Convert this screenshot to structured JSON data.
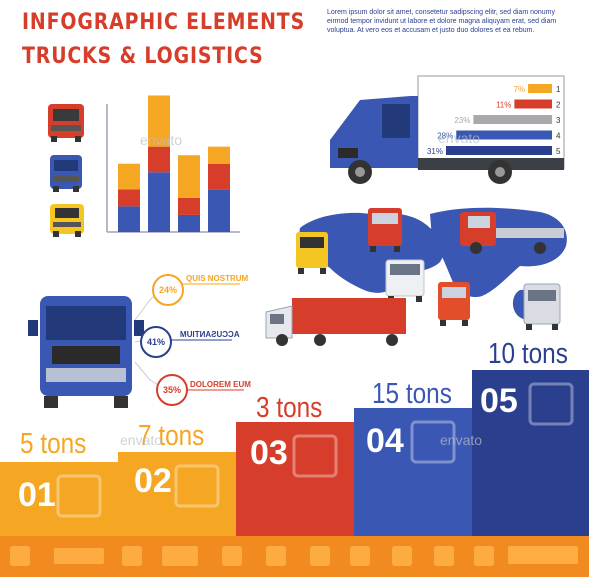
{
  "header": {
    "title_line1": "INFOGRAPHIC ELEMENTS",
    "title_line2": "TRUCKS & LOGISTICS",
    "blurb": "Lorem ipsum dolor sit amet, consetetur sadipscing elitr, sed diam nonumy eirmod tempor invidunt ut labore et dolore magna aliquyam erat, sed diam voluptua. At vero eos et accusam et justo duo dolores et ea rebum."
  },
  "colors": {
    "red": "#d63d2a",
    "orange": "#f5a623",
    "blue": "#3b57b4",
    "dark_blue": "#2b3f8f",
    "grey": "#a7a9ac"
  },
  "chart_data": [
    {
      "type": "bar",
      "stacked": true,
      "series_colors": [
        "#3b57b4",
        "#d63d2a",
        "#f5a623"
      ],
      "bars": [
        [
          3,
          2,
          3
        ],
        [
          7,
          3,
          6
        ],
        [
          2,
          2,
          5
        ],
        [
          5,
          3,
          2
        ]
      ],
      "ylim": [
        0,
        15
      ],
      "grid": false
    },
    {
      "type": "bar",
      "orientation": "horizontal",
      "categories": [
        "1",
        "2",
        "3",
        "4",
        "5"
      ],
      "values": [
        7,
        11,
        23,
        28,
        31
      ],
      "labels": [
        "7%",
        "11%",
        "23%",
        "28%",
        "31%"
      ],
      "colors": [
        "#f5a623",
        "#d63d2a",
        "#a7a9ac",
        "#3b57b4",
        "#2b3f8f"
      ]
    }
  ],
  "donut_labels": [
    {
      "pct": "24%",
      "label": "QUIS NOSTRUM",
      "color": "#f5a623"
    },
    {
      "pct": "41%",
      "label": "ACCUSANTIUM",
      "color": "#2b3f8f"
    },
    {
      "pct": "35%",
      "label": "DOLOREM EUM",
      "color": "#d63d2a"
    }
  ],
  "steps": [
    {
      "num": "01",
      "tons": "5 tons",
      "color": "#f5a623"
    },
    {
      "num": "02",
      "tons": "7 tons",
      "color": "#f5a623"
    },
    {
      "num": "03",
      "tons": "3 tons",
      "color": "#d63d2a"
    },
    {
      "num": "04",
      "tons": "15 tons",
      "color": "#3b57b4"
    },
    {
      "num": "05",
      "tons": "10 tons",
      "color": "#2b3f8f"
    }
  ],
  "watermark": "envato"
}
